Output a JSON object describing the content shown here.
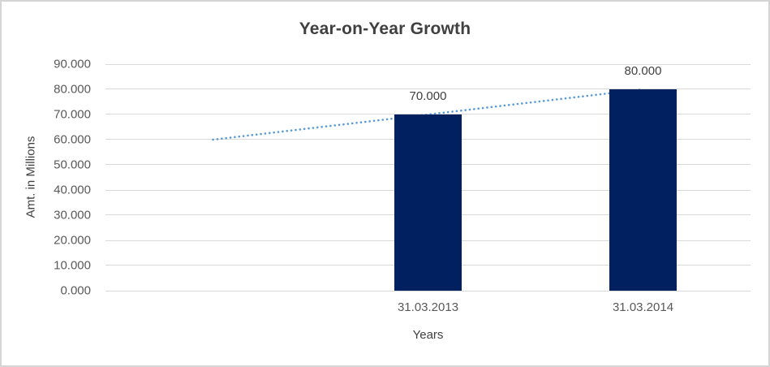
{
  "chart_data": {
    "type": "bar",
    "title": "Year-on-Year Growth",
    "xlabel": "Years",
    "ylabel": "Amt. in Millions",
    "categories": [
      "31.03.2013",
      "31.03.2014"
    ],
    "values": [
      70,
      80
    ],
    "data_labels": [
      "70.000",
      "80.000"
    ],
    "y_tick_values": [
      90,
      80,
      70,
      60,
      50,
      40,
      30,
      20,
      10,
      0
    ],
    "y_tick_labels": [
      "90.000",
      "80.000",
      "70.000",
      "60.000",
      "50.000",
      "40.000",
      "30.000",
      "20.000",
      "10.000",
      "0.000"
    ],
    "ylim": [
      0,
      90
    ],
    "grid": true,
    "legend": "none",
    "x_slots": 3,
    "bar_slots": [
      1,
      2
    ],
    "trendline": {
      "style": "dotted",
      "color": "#5B9BD5",
      "points": [
        {
          "slot": 0,
          "value": 60
        },
        {
          "slot": 2,
          "value": 80
        }
      ]
    },
    "colors": {
      "bar": "#002060",
      "gridline": "#D9D9D9",
      "title_text": "#404040",
      "axis_text": "#595959",
      "label_text": "#404040",
      "border": "#D5D5D5"
    }
  }
}
